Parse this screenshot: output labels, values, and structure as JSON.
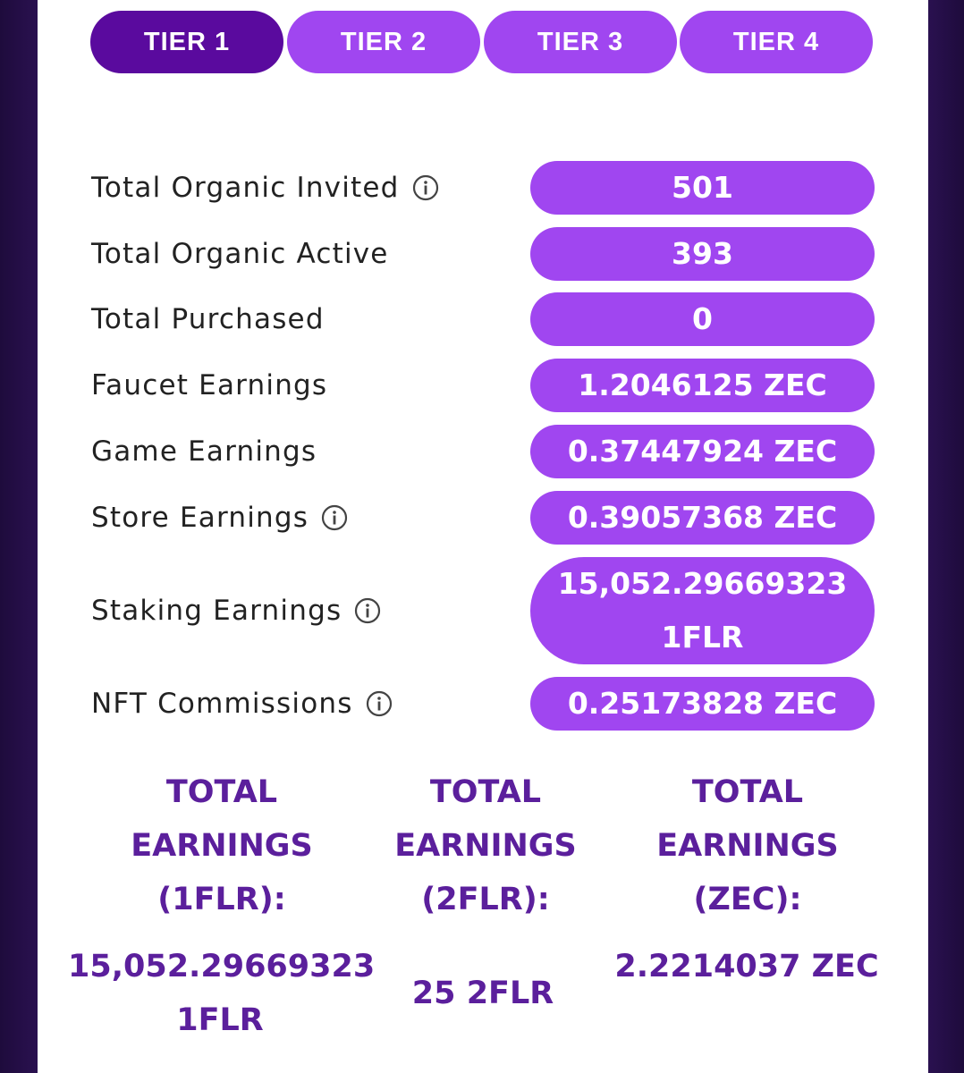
{
  "tabs": [
    "TIER 1",
    "TIER 2",
    "TIER 3",
    "TIER 4"
  ],
  "stats": [
    {
      "label": "Total Organic Invited",
      "value": "501"
    },
    {
      "label": "Total Organic Active",
      "value": "393"
    },
    {
      "label": "Total Purchased",
      "value": "0"
    },
    {
      "label": "Faucet Earnings",
      "value": "1.2046125 ZEC"
    },
    {
      "label": "Game Earnings",
      "value": "0.37447924 ZEC"
    },
    {
      "label": "Store Earnings",
      "value": "0.39057368 ZEC"
    },
    {
      "label": "Staking Earnings",
      "value": "15,052.29669323 1FLR"
    },
    {
      "label": "NFT Commissions",
      "value": "0.25173828 ZEC"
    }
  ],
  "totals": [
    {
      "label": "TOTAL EARNINGS (1FLR):",
      "value": "15,052.29669323 1FLR"
    },
    {
      "label": "TOTAL EARNINGS (2FLR):",
      "value": "25 2FLR"
    },
    {
      "label": "TOTAL EARNINGS (ZEC):",
      "value": "2.2214037 ZEC"
    }
  ]
}
